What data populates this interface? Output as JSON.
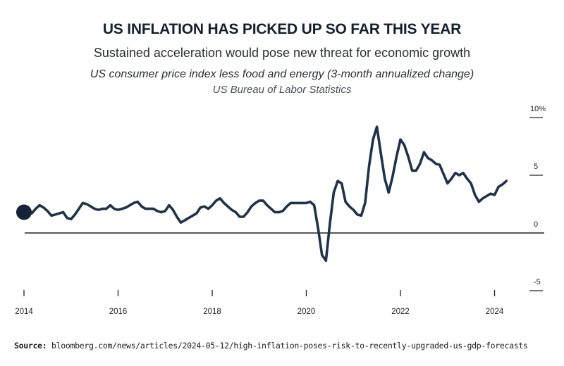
{
  "header": {
    "title": "US INFLATION HAS PICKED UP SO FAR THIS YEAR",
    "subtitle": "Sustained acceleration would pose new threat for economic growth",
    "description": "US consumer price index less food and energy (3-month annualized change)",
    "data_source": "US Bureau of Labor Statistics"
  },
  "footer": {
    "source_label": "Source:",
    "source_url": "bloomberg.com/news/articles/2024-05-12/high-inflation-poses-risk-to-recently-upgraded-us-gdp-forecasts"
  },
  "colors": {
    "line": "#1e3249",
    "axis": "#222222",
    "text": "#1a2230"
  },
  "chart_data": {
    "type": "line",
    "title": "US INFLATION HAS PICKED UP SO FAR THIS YEAR",
    "subtitle": "Sustained acceleration would pose new threat for economic growth",
    "xlabel": "",
    "ylabel": "US consumer price index less food and energy (3-month annualized change)",
    "x_start": "2014-01",
    "x_frequency": "monthly",
    "xlim": [
      2014.0,
      2025.0
    ],
    "ylim": [
      -5,
      10
    ],
    "x_ticks": [
      2014,
      2016,
      2018,
      2020,
      2022,
      2024
    ],
    "x_tick_labels": [
      "2014",
      "2016",
      "2018",
      "2020",
      "2022",
      "2024"
    ],
    "y_ticks": [
      10,
      5,
      0,
      -5
    ],
    "y_tick_labels": [
      "10%",
      "5",
      "0",
      "-5"
    ],
    "y_axis_position": "right",
    "grid": false,
    "legend": "none",
    "start_marker": true,
    "series": [
      {
        "name": "Core CPI 3-month annualized change",
        "values": [
          1.8,
          1.8,
          1.7,
          2.1,
          2.4,
          2.2,
          1.9,
          1.5,
          1.6,
          1.7,
          1.8,
          1.3,
          1.2,
          1.6,
          2.1,
          2.6,
          2.5,
          2.3,
          2.1,
          2.0,
          2.1,
          2.1,
          2.4,
          2.1,
          2.0,
          2.1,
          2.2,
          2.4,
          2.6,
          2.7,
          2.3,
          2.1,
          2.1,
          2.1,
          1.9,
          1.8,
          1.9,
          2.4,
          2.0,
          1.4,
          0.9,
          1.1,
          1.3,
          1.5,
          1.7,
          2.2,
          2.3,
          2.1,
          2.4,
          2.8,
          3.0,
          2.6,
          2.3,
          2.0,
          1.8,
          1.4,
          1.4,
          1.8,
          2.3,
          2.6,
          2.8,
          2.8,
          2.4,
          2.1,
          1.8,
          1.8,
          1.9,
          2.3,
          2.6,
          2.6,
          2.6,
          2.6,
          2.6,
          2.7,
          2.4,
          0.4,
          -1.9,
          -2.4,
          0.8,
          3.5,
          4.5,
          4.3,
          2.7,
          2.3,
          2.0,
          1.6,
          1.5,
          2.6,
          5.8,
          8.1,
          9.2,
          6.9,
          4.7,
          3.5,
          4.9,
          6.6,
          8.1,
          7.6,
          6.6,
          5.4,
          5.4,
          6.0,
          7.0,
          6.5,
          6.3,
          6.0,
          5.9,
          5.1,
          4.3,
          4.7,
          5.2,
          5.0,
          5.2,
          4.7,
          4.3,
          3.3,
          2.7,
          3.0,
          3.2,
          3.4,
          3.3,
          4.0,
          4.2,
          4.5
        ]
      }
    ]
  }
}
